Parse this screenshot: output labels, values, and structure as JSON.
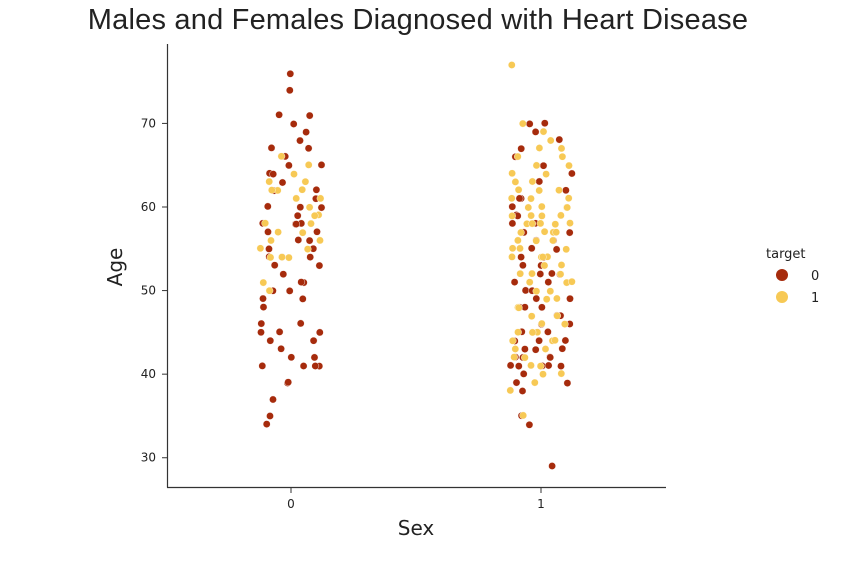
{
  "chart_data": {
    "type": "scatter",
    "subtype": "strip",
    "title": "Males and Females Diagnosed with Heart Disease",
    "xlabel": "Sex",
    "ylabel": "Age",
    "categories": [
      "0",
      "1"
    ],
    "yticks": [
      "30",
      "40",
      "50",
      "60",
      "70"
    ],
    "ylim": [
      26.5,
      79.5
    ],
    "grid": false,
    "legend": {
      "title": "target",
      "placement": "right",
      "entries": [
        {
          "label": "0",
          "color": "#a62b0c"
        },
        {
          "label": "1",
          "color": "#f7c955"
        }
      ]
    },
    "series": [
      {
        "name": "0",
        "color": "#a62b0c",
        "points": [
          [
            0,
            76
          ],
          [
            0,
            74
          ],
          [
            0,
            71
          ],
          [
            0,
            71
          ],
          [
            0,
            70
          ],
          [
            0,
            69
          ],
          [
            0,
            68
          ],
          [
            0,
            67
          ],
          [
            0,
            67
          ],
          [
            0,
            66
          ],
          [
            0,
            65
          ],
          [
            0,
            65
          ],
          [
            0,
            64
          ],
          [
            0,
            64
          ],
          [
            0,
            63
          ],
          [
            0,
            62
          ],
          [
            0,
            62
          ],
          [
            0,
            61
          ],
          [
            0,
            60
          ],
          [
            0,
            60
          ],
          [
            0,
            60
          ],
          [
            0,
            59
          ],
          [
            0,
            58
          ],
          [
            0,
            58
          ],
          [
            0,
            58
          ],
          [
            0,
            58
          ],
          [
            0,
            57
          ],
          [
            0,
            57
          ],
          [
            0,
            56
          ],
          [
            0,
            56
          ],
          [
            0,
            55
          ],
          [
            0,
            55
          ],
          [
            0,
            54
          ],
          [
            0,
            54
          ],
          [
            0,
            54
          ],
          [
            0,
            53
          ],
          [
            0,
            53
          ],
          [
            0,
            52
          ],
          [
            0,
            51
          ],
          [
            0,
            51
          ],
          [
            0,
            50
          ],
          [
            0,
            50
          ],
          [
            0,
            49
          ],
          [
            0,
            49
          ],
          [
            0,
            48
          ],
          [
            0,
            46
          ],
          [
            0,
            46
          ],
          [
            0,
            45
          ],
          [
            0,
            45
          ],
          [
            0,
            45
          ],
          [
            0,
            44
          ],
          [
            0,
            44
          ],
          [
            0,
            43
          ],
          [
            0,
            42
          ],
          [
            0,
            42
          ],
          [
            0,
            41
          ],
          [
            0,
            41
          ],
          [
            0,
            41
          ],
          [
            0,
            41
          ],
          [
            0,
            39
          ],
          [
            0,
            39
          ],
          [
            0,
            37
          ],
          [
            0,
            35
          ],
          [
            0,
            34
          ],
          [
            1,
            70
          ],
          [
            1,
            70
          ],
          [
            1,
            69
          ],
          [
            1,
            68
          ],
          [
            1,
            67
          ],
          [
            1,
            66
          ],
          [
            1,
            65
          ],
          [
            1,
            64
          ],
          [
            1,
            63
          ],
          [
            1,
            62
          ],
          [
            1,
            61
          ],
          [
            1,
            61
          ],
          [
            1,
            60
          ],
          [
            1,
            59
          ],
          [
            1,
            59
          ],
          [
            1,
            58
          ],
          [
            1,
            58
          ],
          [
            1,
            57
          ],
          [
            1,
            57
          ],
          [
            1,
            57
          ],
          [
            1,
            56
          ],
          [
            1,
            56
          ],
          [
            1,
            55
          ],
          [
            1,
            55
          ],
          [
            1,
            54
          ],
          [
            1,
            54
          ],
          [
            1,
            53
          ],
          [
            1,
            53
          ],
          [
            1,
            52
          ],
          [
            1,
            52
          ],
          [
            1,
            52
          ],
          [
            1,
            51
          ],
          [
            1,
            51
          ],
          [
            1,
            50
          ],
          [
            1,
            50
          ],
          [
            1,
            49
          ],
          [
            1,
            49
          ],
          [
            1,
            48
          ],
          [
            1,
            48
          ],
          [
            1,
            48
          ],
          [
            1,
            47
          ],
          [
            1,
            47
          ],
          [
            1,
            46
          ],
          [
            1,
            46
          ],
          [
            1,
            45
          ],
          [
            1,
            45
          ],
          [
            1,
            44
          ],
          [
            1,
            44
          ],
          [
            1,
            44
          ],
          [
            1,
            43
          ],
          [
            1,
            43
          ],
          [
            1,
            43
          ],
          [
            1,
            42
          ],
          [
            1,
            42
          ],
          [
            1,
            42
          ],
          [
            1,
            42
          ],
          [
            1,
            41
          ],
          [
            1,
            41
          ],
          [
            1,
            41
          ],
          [
            1,
            41
          ],
          [
            1,
            41
          ],
          [
            1,
            40
          ],
          [
            1,
            39
          ],
          [
            1,
            39
          ],
          [
            1,
            38
          ],
          [
            1,
            35
          ],
          [
            1,
            34
          ],
          [
            1,
            29
          ]
        ]
      },
      {
        "name": "1",
        "color": "#f7c955",
        "points": [
          [
            0,
            66
          ],
          [
            0,
            65
          ],
          [
            0,
            64
          ],
          [
            0,
            63
          ],
          [
            0,
            63
          ],
          [
            0,
            62
          ],
          [
            0,
            62
          ],
          [
            0,
            62
          ],
          [
            0,
            61
          ],
          [
            0,
            61
          ],
          [
            0,
            60
          ],
          [
            0,
            59
          ],
          [
            0,
            59
          ],
          [
            0,
            58
          ],
          [
            0,
            58
          ],
          [
            0,
            57
          ],
          [
            0,
            57
          ],
          [
            0,
            56
          ],
          [
            0,
            56
          ],
          [
            0,
            55
          ],
          [
            0,
            55
          ],
          [
            0,
            54
          ],
          [
            0,
            54
          ],
          [
            0,
            54
          ],
          [
            0,
            51
          ],
          [
            0,
            50
          ],
          [
            1,
            77
          ],
          [
            1,
            70
          ],
          [
            1,
            69
          ],
          [
            1,
            68
          ],
          [
            1,
            67
          ],
          [
            1,
            67
          ],
          [
            1,
            66
          ],
          [
            1,
            66
          ],
          [
            1,
            65
          ],
          [
            1,
            65
          ],
          [
            1,
            64
          ],
          [
            1,
            64
          ],
          [
            1,
            63
          ],
          [
            1,
            63
          ],
          [
            1,
            62
          ],
          [
            1,
            62
          ],
          [
            1,
            62
          ],
          [
            1,
            61
          ],
          [
            1,
            61
          ],
          [
            1,
            61
          ],
          [
            1,
            60
          ],
          [
            1,
            60
          ],
          [
            1,
            60
          ],
          [
            1,
            60
          ],
          [
            1,
            59
          ],
          [
            1,
            59
          ],
          [
            1,
            59
          ],
          [
            1,
            59
          ],
          [
            1,
            58
          ],
          [
            1,
            58
          ],
          [
            1,
            58
          ],
          [
            1,
            58
          ],
          [
            1,
            58
          ],
          [
            1,
            57
          ],
          [
            1,
            57
          ],
          [
            1,
            57
          ],
          [
            1,
            57
          ],
          [
            1,
            56
          ],
          [
            1,
            56
          ],
          [
            1,
            56
          ],
          [
            1,
            55
          ],
          [
            1,
            55
          ],
          [
            1,
            55
          ],
          [
            1,
            54
          ],
          [
            1,
            54
          ],
          [
            1,
            54
          ],
          [
            1,
            54
          ],
          [
            1,
            53
          ],
          [
            1,
            53
          ],
          [
            1,
            52
          ],
          [
            1,
            52
          ],
          [
            1,
            52
          ],
          [
            1,
            51
          ],
          [
            1,
            51
          ],
          [
            1,
            51
          ],
          [
            1,
            50
          ],
          [
            1,
            50
          ],
          [
            1,
            49
          ],
          [
            1,
            49
          ],
          [
            1,
            48
          ],
          [
            1,
            48
          ],
          [
            1,
            47
          ],
          [
            1,
            47
          ],
          [
            1,
            46
          ],
          [
            1,
            46
          ],
          [
            1,
            45
          ],
          [
            1,
            45
          ],
          [
            1,
            45
          ],
          [
            1,
            44
          ],
          [
            1,
            44
          ],
          [
            1,
            44
          ],
          [
            1,
            43
          ],
          [
            1,
            43
          ],
          [
            1,
            42
          ],
          [
            1,
            42
          ],
          [
            1,
            41
          ],
          [
            1,
            41
          ],
          [
            1,
            40
          ],
          [
            1,
            40
          ],
          [
            1,
            39
          ],
          [
            1,
            38
          ],
          [
            1,
            35
          ]
        ]
      }
    ]
  }
}
